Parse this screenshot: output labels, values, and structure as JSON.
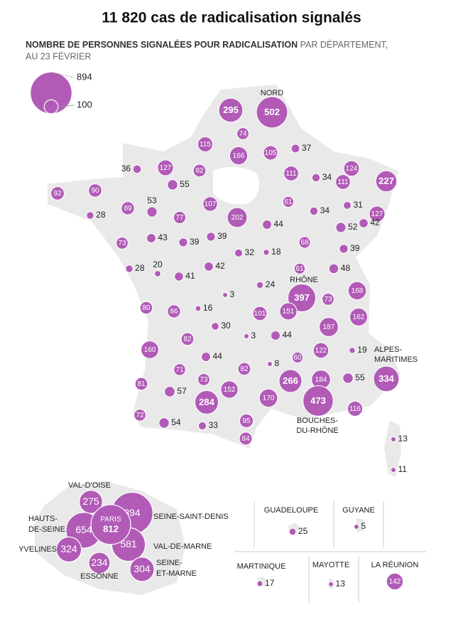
{
  "title": "11 820 cas de radicalisation signalés",
  "subtitle": {
    "bold": "NOMBRE DE PERSONNES SIGNALÉES POUR RADICALISATION",
    "rest": "PAR DÉPARTEMENT,",
    "rest2": "AU 23 FÉVRIER"
  },
  "color": "#b15bb7",
  "legend": {
    "values": [
      894,
      100
    ]
  },
  "departments": [
    {
      "value": 295
    },
    {
      "value": 502,
      "name": [
        "NORD"
      ]
    },
    {
      "value": 74
    },
    {
      "value": 115
    },
    {
      "value": 166
    },
    {
      "value": 105
    },
    {
      "value": 37
    },
    {
      "value": 36
    },
    {
      "value": 127
    },
    {
      "value": 82
    },
    {
      "value": 111
    },
    {
      "value": 34
    },
    {
      "value": 124
    },
    {
      "value": 111
    },
    {
      "value": 227
    },
    {
      "value": 92
    },
    {
      "value": 90
    },
    {
      "value": 55
    },
    {
      "value": 28
    },
    {
      "value": 89
    },
    {
      "value": 53
    },
    {
      "value": 77
    },
    {
      "value": 107
    },
    {
      "value": 202
    },
    {
      "value": 61
    },
    {
      "value": 34
    },
    {
      "value": 31
    },
    {
      "value": 127
    },
    {
      "value": 73
    },
    {
      "value": 43
    },
    {
      "value": 39
    },
    {
      "value": 39
    },
    {
      "value": 44
    },
    {
      "value": 52
    },
    {
      "value": 42
    },
    {
      "value": 68
    },
    {
      "value": 39
    },
    {
      "value": 32
    },
    {
      "value": 18
    },
    {
      "value": 28
    },
    {
      "value": 20
    },
    {
      "value": 41
    },
    {
      "value": 42
    },
    {
      "value": 61
    },
    {
      "value": 48
    },
    {
      "value": 24
    },
    {
      "value": 397,
      "name": [
        "RHÔNE"
      ]
    },
    {
      "value": 73
    },
    {
      "value": 168
    },
    {
      "value": 3
    },
    {
      "value": 80
    },
    {
      "value": 86
    },
    {
      "value": 16
    },
    {
      "value": 101
    },
    {
      "value": 151
    },
    {
      "value": 162
    },
    {
      "value": 30
    },
    {
      "value": 187
    },
    {
      "value": 3
    },
    {
      "value": 44
    },
    {
      "value": 82
    },
    {
      "value": 160
    },
    {
      "value": 19
    },
    {
      "value": 122
    },
    {
      "value": 60
    },
    {
      "value": 44
    },
    {
      "value": 8
    },
    {
      "value": 71
    },
    {
      "value": 82
    },
    {
      "value": 81
    },
    {
      "value": 73
    },
    {
      "value": 152
    },
    {
      "value": 266
    },
    {
      "value": 184
    },
    {
      "value": 55
    },
    {
      "value": 334,
      "name": [
        "ALPES-",
        "MARITIMES"
      ]
    },
    {
      "value": 57
    },
    {
      "value": 284
    },
    {
      "value": 170
    },
    {
      "value": 473,
      "name": [
        "BOUCHES-",
        "DU-RHÔNE"
      ]
    },
    {
      "value": 116
    },
    {
      "value": 72
    },
    {
      "value": 54
    },
    {
      "value": 33
    },
    {
      "value": 95
    },
    {
      "value": 84
    },
    {
      "value": 13
    },
    {
      "value": 11
    }
  ],
  "ile_de_france": [
    {
      "name": [
        "VAL-D'OISE"
      ],
      "value": 275
    },
    {
      "name": [
        "SEINE-SAINT-DENIS"
      ],
      "value": 894
    },
    {
      "name": [
        "HAUTS-",
        "DE-SEINE"
      ],
      "value": 654
    },
    {
      "name": [
        "VAL-DE-MARNE"
      ],
      "value": 581
    },
    {
      "name": [
        "YVELINES"
      ],
      "value": 324
    },
    {
      "name": [
        "ESSONNE"
      ],
      "value": 234
    },
    {
      "name": [
        "SEINE-",
        "ET-MARNE"
      ],
      "value": 304
    },
    {
      "name": [
        "PARIS"
      ],
      "value": 812
    }
  ],
  "overseas": [
    {
      "name": "GUADELOUPE",
      "value": 25
    },
    {
      "name": "GUYANE",
      "value": 5
    },
    {
      "name": "MARTINIQUE",
      "value": 17
    },
    {
      "name": "MAYOTTE",
      "value": 13
    },
    {
      "name": "LA RÉUNION",
      "value": 142
    }
  ]
}
